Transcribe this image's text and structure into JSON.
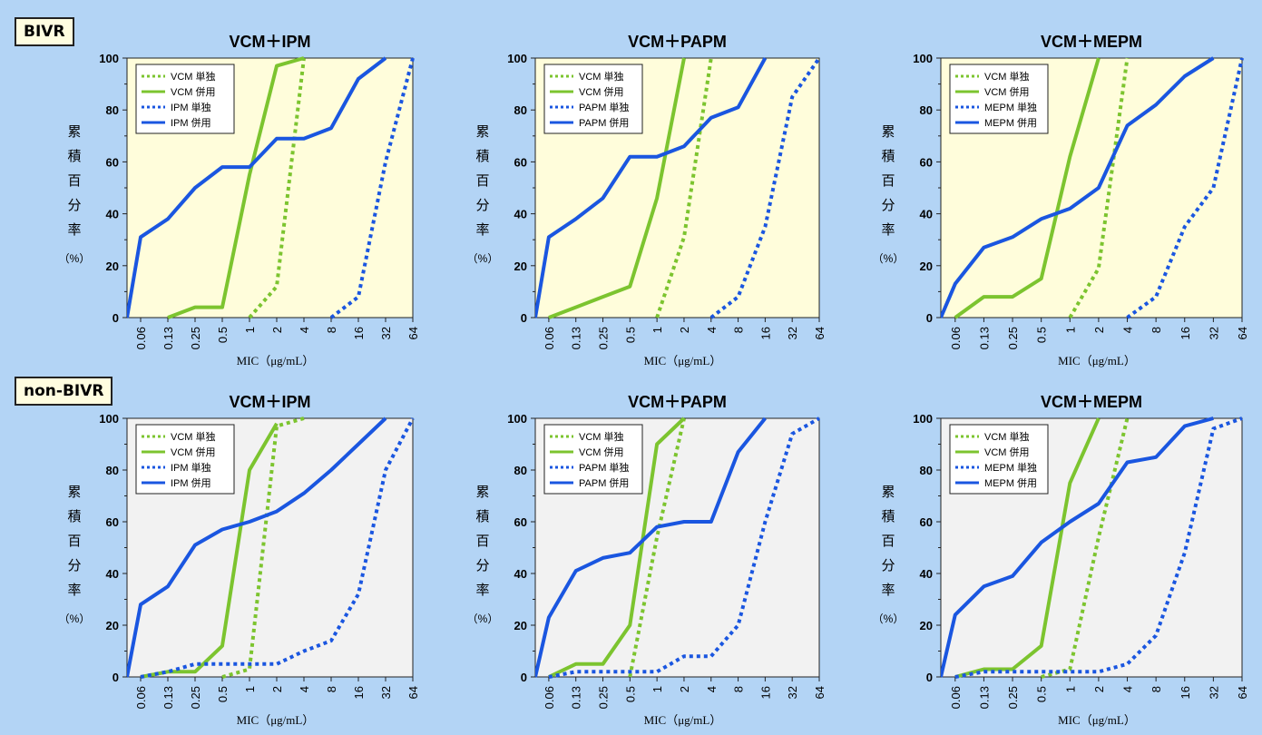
{
  "group_labels": {
    "bivr": "BIVR",
    "non_bivr": "non-BIVR"
  },
  "colors": {
    "vcm": "#7cc42f",
    "carbapenem": "#1a56e0",
    "bivr_panel": "#fffddb",
    "non_bivr_panel": "#f2f2f2",
    "background": "#b3d4f5"
  },
  "chart_data": [
    {
      "group": "BIVR",
      "type": "line",
      "title": "VCM＋IPM",
      "panel_color": "#fffddb",
      "xlabel": "MIC（μg/mL）",
      "ylabel": "累積百分率",
      "yunit": "（%）",
      "categories": [
        "0.06",
        "0.13",
        "0.25",
        "0.5",
        "1",
        "2",
        "4",
        "8",
        "16",
        "32",
        "64"
      ],
      "ylim": [
        0,
        100
      ],
      "yticks": [
        0,
        20,
        40,
        60,
        80,
        100
      ],
      "legend": "top-left",
      "series": [
        {
          "name": "VCM 単独",
          "color": "#7cc42f",
          "dash": true,
          "points": [
            [
              4,
              0
            ],
            [
              5,
              12
            ],
            [
              6,
              100
            ]
          ]
        },
        {
          "name": "VCM 併用",
          "color": "#7cc42f",
          "dash": false,
          "points": [
            [
              1,
              0
            ],
            [
              2,
              4
            ],
            [
              3,
              4
            ],
            [
              4,
              55
            ],
            [
              5,
              97
            ],
            [
              6,
              100
            ]
          ]
        },
        {
          "name": "IPM 単独",
          "color": "#1a56e0",
          "dash": true,
          "points": [
            [
              7,
              0
            ],
            [
              8,
              8
            ],
            [
              9,
              60
            ],
            [
              10,
              100
            ]
          ]
        },
        {
          "name": "IPM 併用",
          "color": "#1a56e0",
          "dash": false,
          "points": [
            [
              -0.5,
              0
            ],
            [
              0,
              31
            ],
            [
              1,
              38
            ],
            [
              2,
              50
            ],
            [
              3,
              58
            ],
            [
              4,
              58
            ],
            [
              5,
              69
            ],
            [
              6,
              69
            ],
            [
              7,
              73
            ],
            [
              8,
              92
            ],
            [
              9,
              100
            ]
          ]
        }
      ]
    },
    {
      "group": "BIVR",
      "type": "line",
      "title": "VCM＋PAPM",
      "panel_color": "#fffddb",
      "xlabel": "MIC（μg/mL）",
      "ylabel": "累積百分率",
      "yunit": "（%）",
      "categories": [
        "0.06",
        "0.13",
        "0.25",
        "0.5",
        "1",
        "2",
        "4",
        "8",
        "16",
        "32",
        "64"
      ],
      "ylim": [
        0,
        100
      ],
      "yticks": [
        0,
        20,
        40,
        60,
        80,
        100
      ],
      "legend": "top-left",
      "series": [
        {
          "name": "VCM 単独",
          "color": "#7cc42f",
          "dash": true,
          "points": [
            [
              4,
              0
            ],
            [
              5,
              31
            ],
            [
              6,
              100
            ]
          ]
        },
        {
          "name": "VCM 併用",
          "color": "#7cc42f",
          "dash": false,
          "points": [
            [
              0,
              0
            ],
            [
              1,
              4
            ],
            [
              2,
              8
            ],
            [
              3,
              12
            ],
            [
              4,
              46
            ],
            [
              5,
              100
            ]
          ]
        },
        {
          "name": "PAPM 単独",
          "color": "#1a56e0",
          "dash": true,
          "points": [
            [
              6,
              0
            ],
            [
              7,
              8
            ],
            [
              8,
              35
            ],
            [
              9,
              85
            ],
            [
              10,
              100
            ]
          ]
        },
        {
          "name": "PAPM 併用",
          "color": "#1a56e0",
          "dash": false,
          "points": [
            [
              -0.5,
              0
            ],
            [
              0,
              31
            ],
            [
              1,
              38
            ],
            [
              2,
              46
            ],
            [
              3,
              62
            ],
            [
              4,
              62
            ],
            [
              5,
              66
            ],
            [
              6,
              77
            ],
            [
              7,
              81
            ],
            [
              8,
              100
            ]
          ]
        }
      ]
    },
    {
      "group": "BIVR",
      "type": "line",
      "title": "VCM＋MEPM",
      "panel_color": "#fffddb",
      "xlabel": "MIC（μg/mL）",
      "ylabel": "累積百分率",
      "yunit": "（%）",
      "categories": [
        "0.06",
        "0.13",
        "0.25",
        "0.5",
        "1",
        "2",
        "4",
        "8",
        "16",
        "32",
        "64"
      ],
      "ylim": [
        0,
        100
      ],
      "yticks": [
        0,
        20,
        40,
        60,
        80,
        100
      ],
      "legend": "top-left",
      "series": [
        {
          "name": "VCM 単独",
          "color": "#7cc42f",
          "dash": true,
          "points": [
            [
              4,
              0
            ],
            [
              5,
              19
            ],
            [
              6,
              100
            ]
          ]
        },
        {
          "name": "VCM 併用",
          "color": "#7cc42f",
          "dash": false,
          "points": [
            [
              0,
              0
            ],
            [
              1,
              8
            ],
            [
              2,
              8
            ],
            [
              3,
              15
            ],
            [
              4,
              62
            ],
            [
              5,
              100
            ]
          ]
        },
        {
          "name": "MEPM 単独",
          "color": "#1a56e0",
          "dash": true,
          "points": [
            [
              6,
              0
            ],
            [
              7,
              8
            ],
            [
              8,
              35
            ],
            [
              9,
              50
            ],
            [
              10,
              100
            ]
          ]
        },
        {
          "name": "MEPM 併用",
          "color": "#1a56e0",
          "dash": false,
          "points": [
            [
              -0.5,
              0
            ],
            [
              0,
              13
            ],
            [
              1,
              27
            ],
            [
              2,
              31
            ],
            [
              3,
              38
            ],
            [
              4,
              42
            ],
            [
              5,
              50
            ],
            [
              6,
              74
            ],
            [
              7,
              82
            ],
            [
              8,
              93
            ],
            [
              9,
              100
            ]
          ]
        }
      ]
    },
    {
      "group": "non-BIVR",
      "type": "line",
      "title": "VCM＋IPM",
      "panel_color": "#f2f2f2",
      "xlabel": "MIC（μg/mL）",
      "ylabel": "累積百分率",
      "yunit": "（%）",
      "categories": [
        "0.06",
        "0.13",
        "0.25",
        "0.5",
        "1",
        "2",
        "4",
        "8",
        "16",
        "32",
        "64"
      ],
      "ylim": [
        0,
        100
      ],
      "yticks": [
        0,
        20,
        40,
        60,
        80,
        100
      ],
      "legend": "top-left",
      "series": [
        {
          "name": "VCM 単独",
          "color": "#7cc42f",
          "dash": true,
          "points": [
            [
              3,
              0
            ],
            [
              4,
              3
            ],
            [
              5,
              97
            ],
            [
              6,
              100
            ]
          ]
        },
        {
          "name": "VCM 併用",
          "color": "#7cc42f",
          "dash": false,
          "points": [
            [
              0,
              0
            ],
            [
              1,
              2
            ],
            [
              2,
              2
            ],
            [
              3,
              12
            ],
            [
              4,
              80
            ],
            [
              5,
              98
            ]
          ]
        },
        {
          "name": "IPM 単独",
          "color": "#1a56e0",
          "dash": true,
          "points": [
            [
              0,
              0
            ],
            [
              1,
              2
            ],
            [
              2,
              5
            ],
            [
              3,
              5
            ],
            [
              4,
              5
            ],
            [
              5,
              5
            ],
            [
              6,
              10
            ],
            [
              7,
              14
            ],
            [
              8,
              32
            ],
            [
              9,
              80
            ],
            [
              10,
              100
            ]
          ]
        },
        {
          "name": "IPM 併用",
          "color": "#1a56e0",
          "dash": false,
          "points": [
            [
              -0.5,
              0
            ],
            [
              0,
              28
            ],
            [
              1,
              35
            ],
            [
              2,
              51
            ],
            [
              3,
              57
            ],
            [
              4,
              60
            ],
            [
              5,
              64
            ],
            [
              6,
              71
            ],
            [
              7,
              80
            ],
            [
              8,
              90
            ],
            [
              9,
              100
            ]
          ]
        }
      ]
    },
    {
      "group": "non-BIVR",
      "type": "line",
      "title": "VCM＋PAPM",
      "panel_color": "#f2f2f2",
      "xlabel": "MIC（μg/mL）",
      "ylabel": "累積百分率",
      "yunit": "（%）",
      "categories": [
        "0.06",
        "0.13",
        "0.25",
        "0.5",
        "1",
        "2",
        "4",
        "8",
        "16",
        "32",
        "64"
      ],
      "ylim": [
        0,
        100
      ],
      "yticks": [
        0,
        20,
        40,
        60,
        80,
        100
      ],
      "legend": "top-left",
      "series": [
        {
          "name": "VCM 単独",
          "color": "#7cc42f",
          "dash": true,
          "points": [
            [
              3,
              0
            ],
            [
              4,
              54
            ],
            [
              5,
              100
            ]
          ]
        },
        {
          "name": "VCM 併用",
          "color": "#7cc42f",
          "dash": false,
          "points": [
            [
              0,
              0
            ],
            [
              1,
              5
            ],
            [
              2,
              5
            ],
            [
              3,
              20
            ],
            [
              4,
              90
            ],
            [
              5,
              100
            ]
          ]
        },
        {
          "name": "PAPM 単独",
          "color": "#1a56e0",
          "dash": true,
          "points": [
            [
              0,
              0
            ],
            [
              1,
              2
            ],
            [
              2,
              2
            ],
            [
              3,
              2
            ],
            [
              4,
              2
            ],
            [
              5,
              8
            ],
            [
              6,
              8
            ],
            [
              7,
              20
            ],
            [
              8,
              60
            ],
            [
              9,
              94
            ],
            [
              10,
              100
            ]
          ]
        },
        {
          "name": "PAPM 併用",
          "color": "#1a56e0",
          "dash": false,
          "points": [
            [
              -0.5,
              0
            ],
            [
              0,
              23
            ],
            [
              1,
              41
            ],
            [
              2,
              46
            ],
            [
              3,
              48
            ],
            [
              4,
              58
            ],
            [
              5,
              60
            ],
            [
              6,
              60
            ],
            [
              7,
              87
            ],
            [
              8,
              100
            ]
          ]
        }
      ]
    },
    {
      "group": "non-BIVR",
      "type": "line",
      "title": "VCM＋MEPM",
      "panel_color": "#f2f2f2",
      "xlabel": "MIC（μg/mL）",
      "ylabel": "累積百分率",
      "yunit": "（%）",
      "categories": [
        "0.06",
        "0.13",
        "0.25",
        "0.5",
        "1",
        "2",
        "4",
        "8",
        "16",
        "32",
        "64"
      ],
      "ylim": [
        0,
        100
      ],
      "yticks": [
        0,
        20,
        40,
        60,
        80,
        100
      ],
      "legend": "top-left",
      "series": [
        {
          "name": "VCM 単独",
          "color": "#7cc42f",
          "dash": true,
          "points": [
            [
              3,
              0
            ],
            [
              4,
              3
            ],
            [
              5,
              54
            ],
            [
              6,
              100
            ]
          ]
        },
        {
          "name": "VCM 併用",
          "color": "#7cc42f",
          "dash": false,
          "points": [
            [
              0,
              0
            ],
            [
              1,
              3
            ],
            [
              2,
              3
            ],
            [
              3,
              12
            ],
            [
              4,
              75
            ],
            [
              5,
              100
            ]
          ]
        },
        {
          "name": "MEPM 単独",
          "color": "#1a56e0",
          "dash": true,
          "points": [
            [
              0,
              0
            ],
            [
              1,
              2
            ],
            [
              2,
              2
            ],
            [
              3,
              2
            ],
            [
              4,
              2
            ],
            [
              5,
              2
            ],
            [
              6,
              5
            ],
            [
              7,
              16
            ],
            [
              8,
              48
            ],
            [
              9,
              96
            ],
            [
              10,
              100
            ]
          ]
        },
        {
          "name": "MEPM 併用",
          "color": "#1a56e0",
          "dash": false,
          "points": [
            [
              -0.5,
              0
            ],
            [
              0,
              24
            ],
            [
              1,
              35
            ],
            [
              2,
              39
            ],
            [
              3,
              52
            ],
            [
              4,
              60
            ],
            [
              5,
              67
            ],
            [
              6,
              83
            ],
            [
              7,
              85
            ],
            [
              8,
              97
            ],
            [
              9,
              100
            ]
          ]
        }
      ]
    }
  ]
}
